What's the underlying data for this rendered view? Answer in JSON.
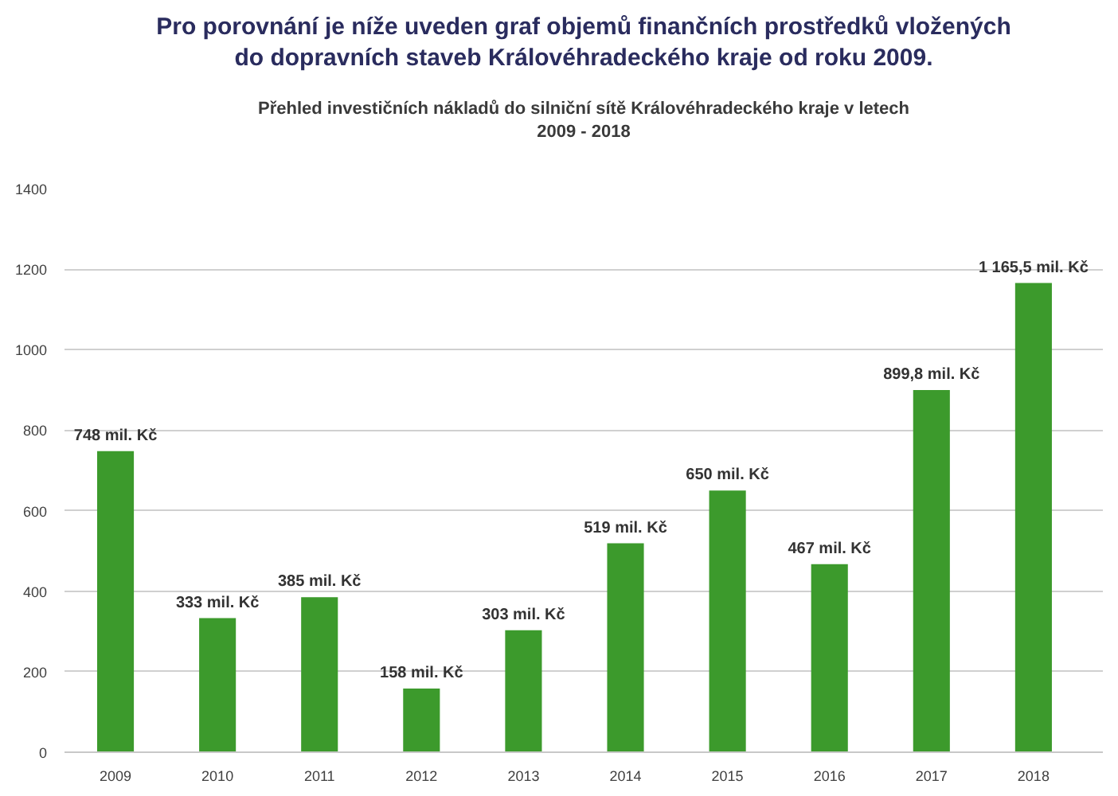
{
  "chart_data": {
    "type": "bar",
    "title": "Pro porovnání je níže uveden graf objemů finančních prostředků vložených\ndo dopravních staveb Královéhradeckého kraje od roku 2009.",
    "subtitle": "Přehled investičních nákladů do silniční sítě Královéhradeckého kraje v letech\n2009 - 2018",
    "categories": [
      "2009",
      "2010",
      "2011",
      "2012",
      "2013",
      "2014",
      "2015",
      "2016",
      "2017",
      "2018"
    ],
    "values": [
      748,
      333,
      385,
      158,
      303,
      519,
      650,
      467,
      899.8,
      1165.5
    ],
    "value_labels": [
      "748 mil. Kč",
      "333 mil. Kč",
      "385 mil. Kč",
      "158 mil. Kč",
      "303 mil. Kč",
      "519 mil. Kč",
      "650 mil. Kč",
      "467 mil. Kč",
      "899,8 mil. Kč",
      "1 165,5 mil. Kč"
    ],
    "color": "#3c9a2c",
    "ylim": [
      0,
      1400
    ],
    "yticks": [
      0,
      200,
      400,
      600,
      800,
      1000,
      1200,
      1400
    ],
    "grid": "y"
  }
}
